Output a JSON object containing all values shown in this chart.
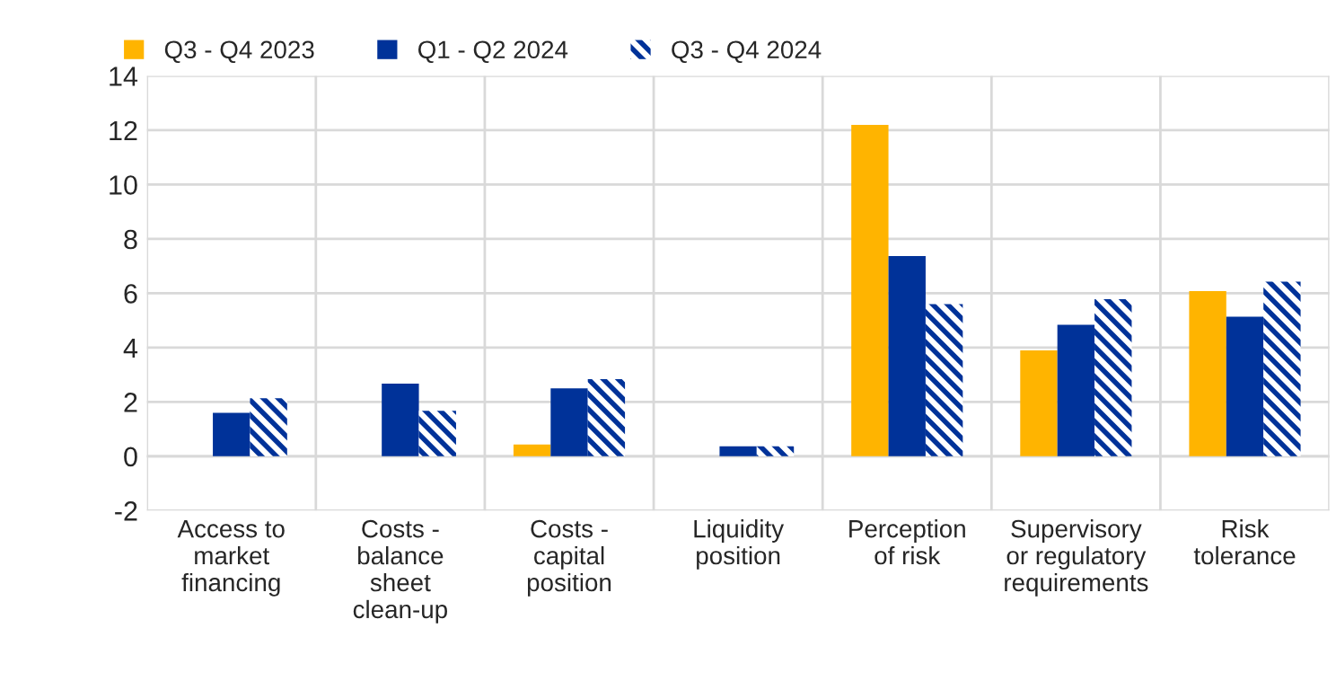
{
  "chart_data": {
    "type": "bar",
    "categories": [
      "Access to\nmarket\nfinancing",
      "Costs -\nbalance\nsheet\nclean-up",
      "Costs -\ncapital\nposition",
      "Liquidity\nposition",
      "Perception\nof risk",
      "Supervisory\nor regulatory\nrequirements",
      "Risk\ntolerance"
    ],
    "series": [
      {
        "name": "Q3 - Q4 2023",
        "color": "#ffb400",
        "values": [
          null,
          null,
          0.43,
          null,
          12.2,
          3.9,
          6.08
        ]
      },
      {
        "name": "Q1 - Q2 2024",
        "color": "#003299",
        "values": [
          1.6,
          2.67,
          2.5,
          0.37,
          7.37,
          4.84,
          5.14
        ]
      },
      {
        "name": "Q3 - Q4 2024",
        "color": "#003299",
        "values": [
          2.14,
          1.67,
          2.84,
          0.37,
          5.6,
          5.78,
          6.43
        ]
      }
    ],
    "ylim": [
      -2,
      14
    ],
    "yticks": [
      -2,
      0,
      2,
      4,
      6,
      8,
      10,
      12,
      14
    ],
    "grid": true,
    "legend": "top left"
  }
}
